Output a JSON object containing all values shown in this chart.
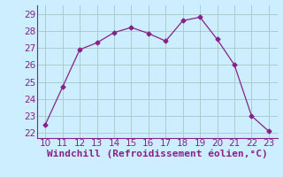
{
  "x": [
    10,
    11,
    12,
    13,
    14,
    15,
    16,
    17,
    18,
    19,
    20,
    21,
    22,
    23
  ],
  "y": [
    22.5,
    24.7,
    26.9,
    27.3,
    27.9,
    28.2,
    27.85,
    27.4,
    28.6,
    28.8,
    27.5,
    26.0,
    23.0,
    22.1
  ],
  "line_color": "#882288",
  "marker": "D",
  "marker_size": 2.5,
  "bg_color": "#cceeff",
  "grid_color": "#aacccc",
  "xlabel": "Windchill (Refroidissement éolien,°C)",
  "xlim": [
    9.5,
    23.5
  ],
  "ylim": [
    21.7,
    29.5
  ],
  "yticks": [
    22,
    23,
    24,
    25,
    26,
    27,
    28,
    29
  ],
  "xticks": [
    10,
    11,
    12,
    13,
    14,
    15,
    16,
    17,
    18,
    19,
    20,
    21,
    22,
    23
  ],
  "tick_color": "#882288",
  "label_color": "#882288",
  "font_size": 7.5,
  "xlabel_fontsize": 8
}
